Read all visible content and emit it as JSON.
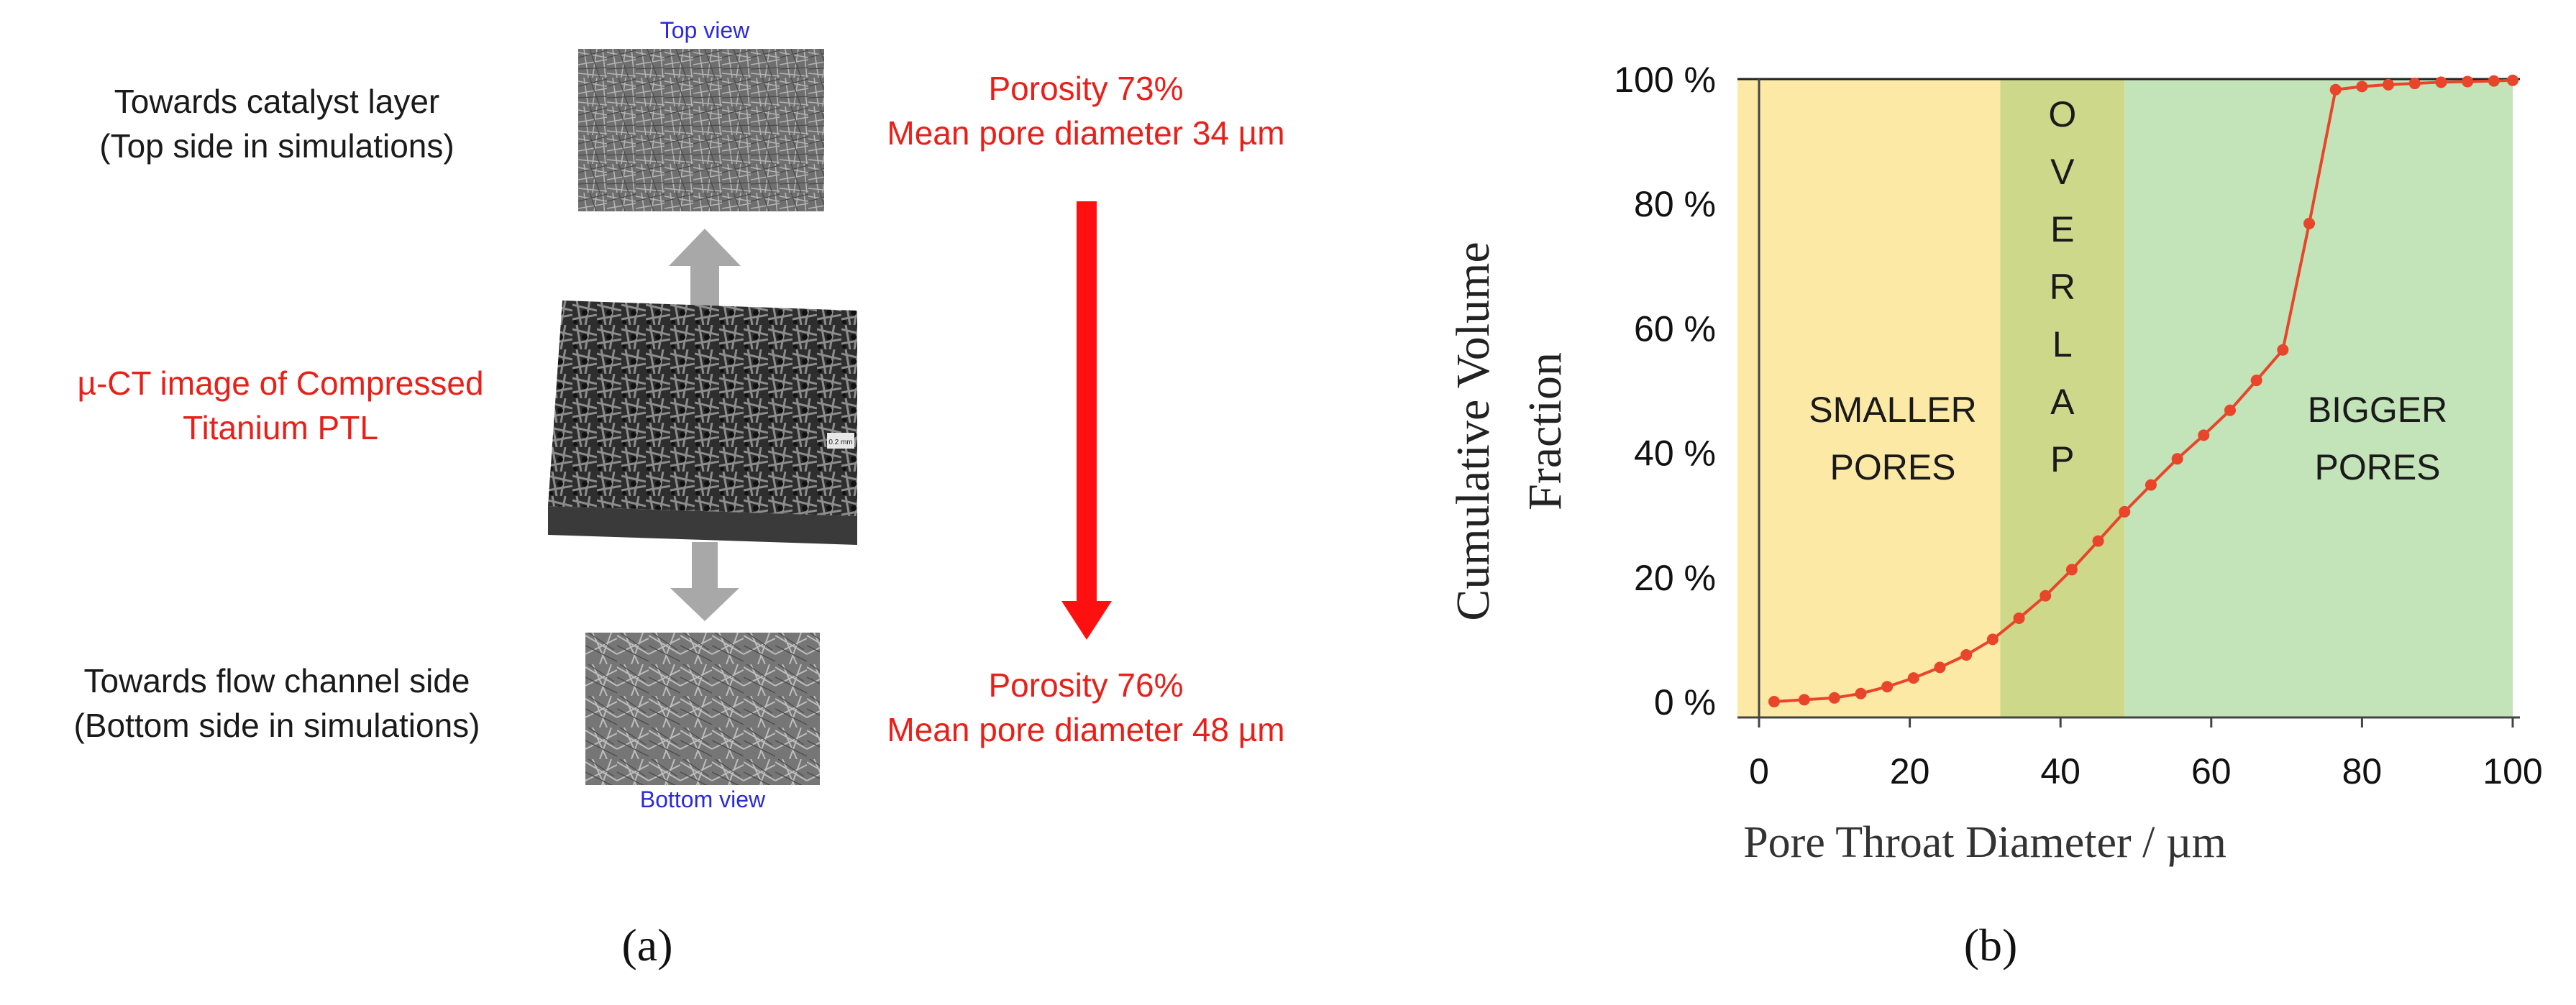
{
  "panel_a": {
    "top_view_label": "Top view",
    "bottom_view_label": "Bottom view",
    "top_side_line1": "Towards catalyst layer",
    "top_side_line2": "(Top side in simulations)",
    "bottom_side_line1": "Towards flow channel side",
    "bottom_side_line2": "(Bottom side in simulations)",
    "ct_line1": "µ-CT image of Compressed",
    "ct_line2": "Titanium PTL",
    "scale_bar_label": "0.2 mm",
    "top_porosity": "Porosity  73%",
    "top_pore_diameter": "Mean pore diameter 34 µm",
    "bottom_porosity": "Porosity 76%",
    "bottom_pore_diameter": "Mean pore diameter 48 µm",
    "caption": "(a)",
    "colors": {
      "annotation": "#e8201a",
      "view_label": "#2b2bd6",
      "arrow_gray": "#a8a8a8"
    }
  },
  "panel_b": {
    "caption": "(b)",
    "region_smaller_line1": "SMALLER",
    "region_smaller_line2": "PORES",
    "region_overlap_letters": [
      "O",
      "V",
      "E",
      "R",
      "L",
      "A",
      "P"
    ],
    "region_bigger_line1": "BIGGER",
    "region_bigger_line2": "PORES",
    "colors": {
      "smaller": "#fde9a6",
      "overlap": "#cdd88b",
      "bigger": "#c3e3b8",
      "series": "#e8452a"
    }
  },
  "chart_data": {
    "type": "line",
    "xlabel": "Pore Throat Diameter / µm",
    "ylabel_line1": "Cumulative Volume",
    "ylabel_line2": "Fraction",
    "xlim": [
      0,
      100
    ],
    "ylim": [
      0,
      100
    ],
    "xticks": [
      0,
      20,
      40,
      60,
      80,
      100
    ],
    "xtick_labels": [
      "0",
      "20",
      "40",
      "60",
      "80",
      "100"
    ],
    "yticks": [
      0,
      20,
      40,
      60,
      80,
      100
    ],
    "ytick_labels": [
      "0 %",
      "20 %",
      "40 %",
      "60 %",
      "80 %",
      "100 %"
    ],
    "regions": [
      {
        "label": "SMALLER PORES",
        "x_range": [
          0,
          32
        ]
      },
      {
        "label": "OVERLAP",
        "x_range": [
          32,
          48.5
        ]
      },
      {
        "label": "BIGGER PORES",
        "x_range": [
          48.5,
          100
        ]
      }
    ],
    "series": [
      {
        "x": [
          2,
          6,
          10,
          13.5,
          17,
          20.5,
          24,
          27.5,
          31,
          34.5,
          38,
          41.5,
          45,
          48.5,
          52,
          55.5,
          59,
          62.5,
          66,
          69.5,
          73,
          76.5,
          80,
          83.5,
          87,
          90.5,
          94,
          97.5,
          100
        ],
        "y": [
          0,
          0.3,
          0.6,
          1.3,
          2.4,
          3.8,
          5.5,
          7.5,
          10,
          13.4,
          17,
          21.2,
          25.8,
          30.5,
          34.8,
          39,
          42.8,
          46.8,
          51.6,
          56.5,
          76.8,
          98.3,
          98.8,
          99.1,
          99.3,
          99.5,
          99.6,
          99.7,
          99.8
        ]
      }
    ]
  }
}
